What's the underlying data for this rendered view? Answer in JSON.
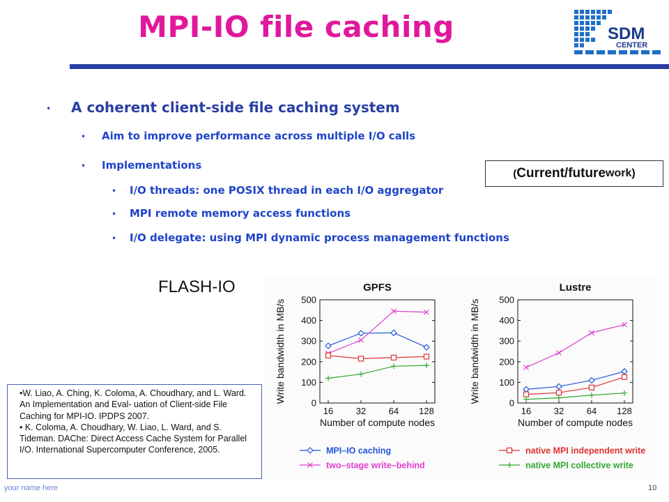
{
  "slide": {
    "title": "MPI-IO file caching",
    "bullet1": "A coherent client-side file caching system",
    "bullet2a": "Aim to improve performance across multiple I/O calls",
    "bullet2b": "Implementations",
    "bullet3a": "I/O threads: one POSIX thread in each I/O aggregator",
    "bullet3b": "MPI remote memory access functions",
    "bullet3c": "I/O delegate: using MPI dynamic process management functions",
    "current_open": "(",
    "current_main": "Current/future",
    "current_work": " work)",
    "flash_label": "FLASH-IO",
    "footer_name": "your name here",
    "page_number": "10",
    "logo_text_1": "SDM",
    "logo_text_2": "CENTER"
  },
  "references": {
    "ref1": "•W. Liao, A. Ching, K. Coloma, A. Choudhary, and L. Ward. An Implementation and Eval- uation of Client-side File Caching for MPI-IO. IPDPS 2007.",
    "ref2": "• K. Coloma, A. Choudhary, W. Liao, L. Ward, and S. Tideman. DAChe: Direct Access Cache System for Parallel I/O. International Supercomputer Conference, 2005."
  },
  "colors": {
    "title": "#e0189c",
    "rule": "#2a3fa4",
    "mpiio": "#2255dd",
    "twostage": "#e040d0",
    "independent": "#e03030",
    "collective": "#30a830"
  },
  "chart_data": [
    {
      "type": "line",
      "title": "GPFS",
      "xlabel": "Number of compute nodes",
      "ylabel": "Write bandwidth in MB/s",
      "categories": [
        "16",
        "32",
        "64",
        "128"
      ],
      "ylim": [
        0,
        500
      ],
      "yticks": [
        0,
        100,
        200,
        300,
        400,
        500
      ],
      "series": [
        {
          "name": "MPI–IO caching",
          "values": [
            277,
            338,
            340,
            270
          ]
        },
        {
          "name": "two–stage write–behind",
          "values": [
            240,
            305,
            445,
            440
          ]
        },
        {
          "name": "native MPI independent write",
          "values": [
            230,
            215,
            220,
            225
          ]
        },
        {
          "name": "native MPI collective write",
          "values": [
            120,
            140,
            178,
            182
          ]
        }
      ]
    },
    {
      "type": "line",
      "title": "Lustre",
      "xlabel": "Number of compute nodes",
      "ylabel": "Write bandwidth in MB/s",
      "categories": [
        "16",
        "32",
        "64",
        "128"
      ],
      "ylim": [
        0,
        500
      ],
      "yticks": [
        0,
        100,
        200,
        300,
        400,
        500
      ],
      "series": [
        {
          "name": "MPI–IO caching",
          "values": [
            66,
            80,
            110,
            153
          ]
        },
        {
          "name": "two–stage write–behind",
          "values": [
            172,
            243,
            340,
            380
          ]
        },
        {
          "name": "native MPI independent write",
          "values": [
            42,
            50,
            75,
            126
          ]
        },
        {
          "name": "native MPI collective write",
          "values": [
            18,
            25,
            38,
            48
          ]
        }
      ]
    }
  ]
}
